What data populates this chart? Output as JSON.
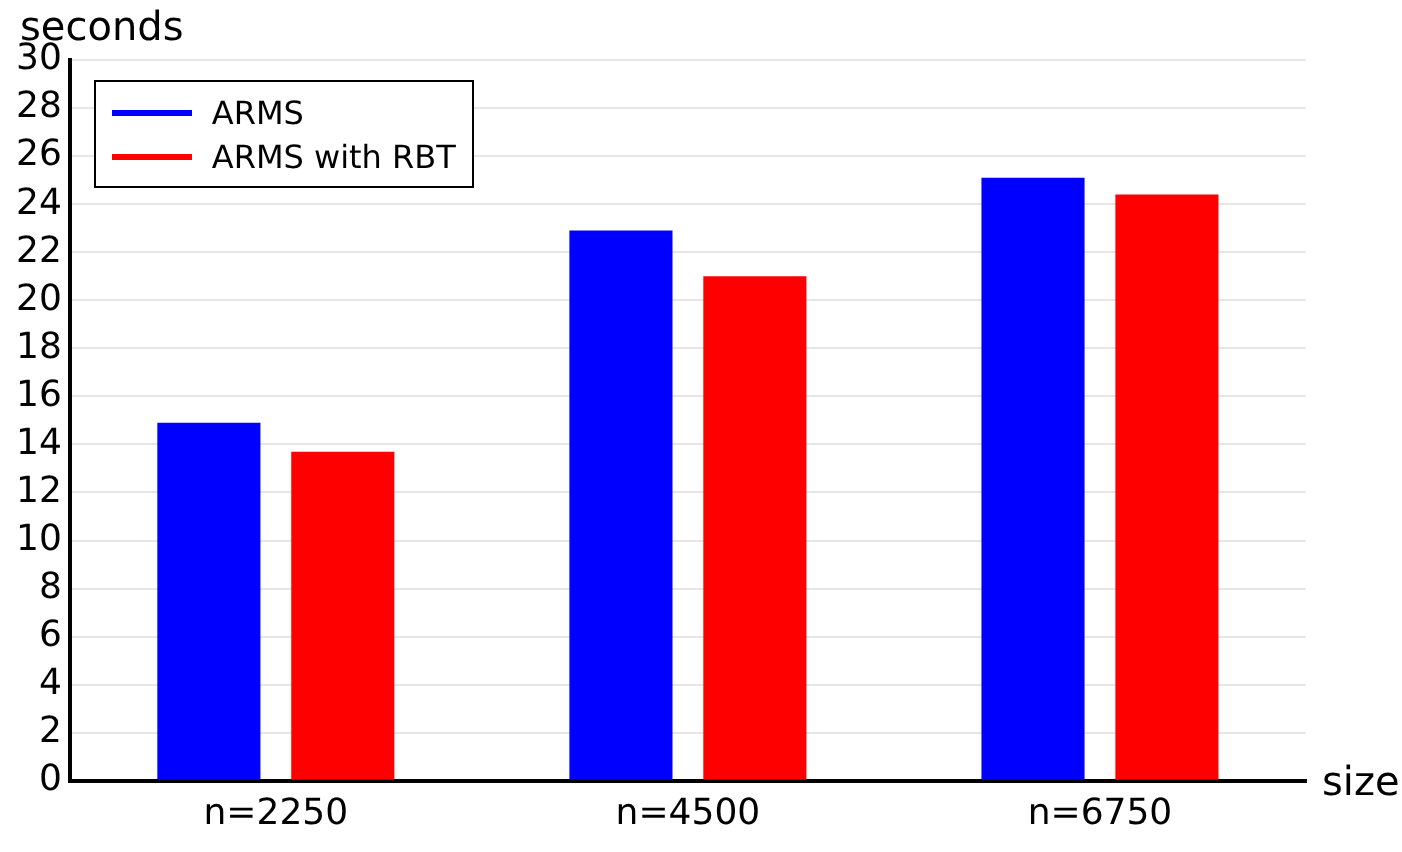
{
  "chart_data": {
    "type": "bar",
    "xlabel": "size",
    "ylabel": "seconds",
    "categories": [
      "n=2250",
      "n=4500",
      "n=6750"
    ],
    "series": [
      {
        "name": "ARMS",
        "color": "#0000ff",
        "values": [
          14.9,
          22.9,
          25.1
        ]
      },
      {
        "name": "ARMS with RBT",
        "color": "#ff0000",
        "values": [
          13.7,
          21.0,
          24.4
        ]
      }
    ],
    "ylim": [
      0,
      30
    ],
    "yticks": [
      0,
      2,
      4,
      6,
      8,
      10,
      12,
      14,
      16,
      18,
      20,
      22,
      24,
      26,
      28,
      30
    ],
    "grid": "y",
    "legend": "top left"
  }
}
